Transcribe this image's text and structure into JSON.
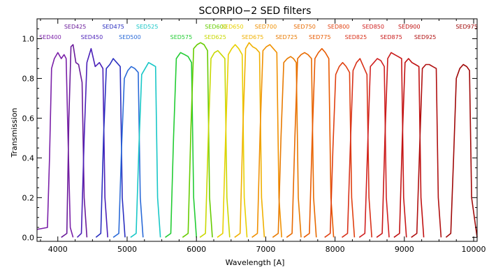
{
  "chart_data": {
    "type": "line",
    "title": "SCORPIO−2 SED filters",
    "xlabel": "Wavelength [A]",
    "ylabel": "Transmission",
    "xlim": [
      3700,
      10050
    ],
    "ylim": [
      -0.02,
      1.1
    ],
    "x_ticks": [
      4000,
      5000,
      6000,
      7000,
      8000,
      9000,
      10000
    ],
    "x_tick_labels": [
      "4000",
      "5000",
      "6000",
      "7000",
      "8000",
      "9000",
      "10000"
    ],
    "y_ticks": [
      0.0,
      0.2,
      0.4,
      0.6,
      0.8,
      1.0
    ],
    "y_tick_labels": [
      "0.0",
      "0.2",
      "0.4",
      "0.6",
      "0.8",
      "1.0"
    ],
    "grid": false,
    "series": [
      {
        "name": "SED400",
        "color": "#7a1fa8",
        "x": [
          3700,
          3850,
          3880,
          3910,
          3950,
          4000,
          4050,
          4090,
          4120,
          4140,
          4180,
          4220
        ],
        "y": [
          0.04,
          0.05,
          0.4,
          0.85,
          0.9,
          0.93,
          0.9,
          0.92,
          0.9,
          0.6,
          0.05,
          0.0
        ]
      },
      {
        "name": "SED425",
        "color": "#6a1b9a",
        "x": [
          4050,
          4130,
          4160,
          4190,
          4220,
          4260,
          4300,
          4350,
          4380,
          4420
        ],
        "y": [
          0.0,
          0.02,
          0.6,
          0.96,
          0.97,
          0.88,
          0.87,
          0.78,
          0.2,
          0.0
        ]
      },
      {
        "name": "SED450",
        "color": "#4a1fb8",
        "x": [
          4280,
          4340,
          4380,
          4420,
          4480,
          4540,
          4600,
          4650,
          4680,
          4720
        ],
        "y": [
          0.0,
          0.02,
          0.5,
          0.88,
          0.95,
          0.86,
          0.88,
          0.85,
          0.2,
          0.0
        ]
      },
      {
        "name": "SED475",
        "color": "#2a2fc0",
        "x": [
          4550,
          4620,
          4660,
          4700,
          4750,
          4800,
          4850,
          4900,
          4930,
          4970
        ],
        "y": [
          0.0,
          0.02,
          0.5,
          0.85,
          0.87,
          0.9,
          0.88,
          0.86,
          0.2,
          0.0
        ]
      },
      {
        "name": "SED500",
        "color": "#2a6ad8",
        "x": [
          4800,
          4880,
          4920,
          4960,
          5010,
          5060,
          5110,
          5160,
          5190,
          5230
        ],
        "y": [
          0.0,
          0.02,
          0.45,
          0.8,
          0.84,
          0.86,
          0.85,
          0.83,
          0.2,
          0.0
        ]
      },
      {
        "name": "SED525",
        "color": "#18c7c7",
        "x": [
          5050,
          5130,
          5170,
          5210,
          5260,
          5310,
          5360,
          5410,
          5440,
          5480
        ],
        "y": [
          0.0,
          0.02,
          0.45,
          0.82,
          0.85,
          0.88,
          0.87,
          0.86,
          0.2,
          0.0
        ]
      },
      {
        "name": "SED575",
        "color": "#22cc33",
        "x": [
          5550,
          5630,
          5670,
          5710,
          5770,
          5830,
          5880,
          5930,
          5960,
          6000
        ],
        "y": [
          0.0,
          0.02,
          0.5,
          0.9,
          0.93,
          0.92,
          0.91,
          0.88,
          0.2,
          0.0
        ]
      },
      {
        "name": "SED600",
        "color": "#66cc00",
        "x": [
          5800,
          5880,
          5920,
          5960,
          6010,
          6060,
          6110,
          6160,
          6190,
          6230
        ],
        "y": [
          0.0,
          0.02,
          0.55,
          0.95,
          0.97,
          0.98,
          0.97,
          0.94,
          0.2,
          0.0
        ]
      },
      {
        "name": "SED625",
        "color": "#c8d800",
        "x": [
          6050,
          6130,
          6170,
          6210,
          6260,
          6310,
          6360,
          6410,
          6440,
          6480
        ],
        "y": [
          0.0,
          0.02,
          0.5,
          0.9,
          0.93,
          0.94,
          0.92,
          0.9,
          0.2,
          0.0
        ]
      },
      {
        "name": "SED650",
        "color": "#e8d000",
        "x": [
          6300,
          6380,
          6420,
          6460,
          6510,
          6560,
          6610,
          6660,
          6690,
          6730
        ],
        "y": [
          0.0,
          0.02,
          0.5,
          0.92,
          0.95,
          0.97,
          0.95,
          0.92,
          0.2,
          0.0
        ]
      },
      {
        "name": "SED675",
        "color": "#f0b000",
        "x": [
          6550,
          6630,
          6670,
          6710,
          6760,
          6810,
          6860,
          6910,
          6940,
          6980
        ],
        "y": [
          0.0,
          0.02,
          0.55,
          0.95,
          0.98,
          0.96,
          0.95,
          0.93,
          0.2,
          0.0
        ]
      },
      {
        "name": "SED700",
        "color": "#f09000",
        "x": [
          6800,
          6880,
          6920,
          6960,
          7010,
          7060,
          7110,
          7160,
          7190,
          7230
        ],
        "y": [
          0.0,
          0.02,
          0.55,
          0.94,
          0.96,
          0.97,
          0.95,
          0.93,
          0.2,
          0.0
        ]
      },
      {
        "name": "SED725",
        "color": "#e87a00",
        "x": [
          7100,
          7180,
          7220,
          7260,
          7310,
          7360,
          7400,
          7440,
          7470,
          7510
        ],
        "y": [
          0.0,
          0.02,
          0.5,
          0.88,
          0.9,
          0.91,
          0.9,
          0.88,
          0.2,
          0.0
        ]
      },
      {
        "name": "SED750",
        "color": "#e86a00",
        "x": [
          7300,
          7380,
          7420,
          7460,
          7510,
          7560,
          7610,
          7660,
          7690,
          7730
        ],
        "y": [
          0.0,
          0.02,
          0.5,
          0.9,
          0.92,
          0.93,
          0.92,
          0.9,
          0.2,
          0.0
        ]
      },
      {
        "name": "SED775",
        "color": "#e85a00",
        "x": [
          7550,
          7630,
          7670,
          7710,
          7760,
          7810,
          7860,
          7910,
          7940,
          7980
        ],
        "y": [
          0.0,
          0.02,
          0.5,
          0.9,
          0.93,
          0.95,
          0.93,
          0.9,
          0.2,
          0.0
        ]
      },
      {
        "name": "SED800",
        "color": "#e04010",
        "x": [
          7850,
          7930,
          7970,
          8010,
          8060,
          8110,
          8160,
          8210,
          8240,
          8280
        ],
        "y": [
          0.0,
          0.02,
          0.45,
          0.82,
          0.86,
          0.88,
          0.86,
          0.83,
          0.2,
          0.0
        ]
      },
      {
        "name": "SED825",
        "color": "#d83018",
        "x": [
          8100,
          8180,
          8220,
          8260,
          8310,
          8360,
          8410,
          8460,
          8490,
          8530
        ],
        "y": [
          0.0,
          0.02,
          0.45,
          0.84,
          0.88,
          0.9,
          0.86,
          0.82,
          0.2,
          0.0
        ]
      },
      {
        "name": "SED850",
        "color": "#d02020",
        "x": [
          8350,
          8430,
          8470,
          8510,
          8560,
          8610,
          8660,
          8710,
          8740,
          8780
        ],
        "y": [
          0.0,
          0.02,
          0.45,
          0.86,
          0.88,
          0.9,
          0.89,
          0.86,
          0.2,
          0.0
        ]
      },
      {
        "name": "SED875",
        "color": "#c81818",
        "x": [
          8600,
          8680,
          8720,
          8760,
          8810,
          8860,
          8910,
          8960,
          8990,
          9030
        ],
        "y": [
          0.0,
          0.02,
          0.5,
          0.9,
          0.93,
          0.92,
          0.91,
          0.9,
          0.2,
          0.0
        ]
      },
      {
        "name": "SED900",
        "color": "#c01010",
        "x": [
          8850,
          8930,
          8970,
          9010,
          9060,
          9110,
          9160,
          9210,
          9240,
          9280
        ],
        "y": [
          0.0,
          0.02,
          0.5,
          0.88,
          0.9,
          0.88,
          0.87,
          0.86,
          0.2,
          0.0
        ]
      },
      {
        "name": "SED925",
        "color": "#b01010",
        "x": [
          9100,
          9180,
          9220,
          9260,
          9310,
          9360,
          9410,
          9460,
          9490,
          9530
        ],
        "y": [
          0.0,
          0.02,
          0.45,
          0.85,
          0.87,
          0.87,
          0.86,
          0.85,
          0.2,
          0.0
        ]
      },
      {
        "name": "SED975",
        "color": "#a00808",
        "x": [
          9600,
          9670,
          9710,
          9750,
          9800,
          9850,
          9900,
          9940,
          9970,
          10050
        ],
        "y": [
          0.0,
          0.02,
          0.4,
          0.8,
          0.85,
          0.87,
          0.86,
          0.84,
          0.2,
          0.0
        ]
      }
    ],
    "filter_labels": [
      {
        "text": "SED425",
        "color": "#6a1b9a",
        "x": 4250,
        "row": 0
      },
      {
        "text": "SED475",
        "color": "#2a2fc0",
        "x": 4800,
        "row": 0
      },
      {
        "text": "SED525",
        "color": "#18c7c7",
        "x": 5290,
        "row": 0
      },
      {
        "text": "SED600",
        "color": "#66cc00",
        "x": 6280,
        "row": 0
      },
      {
        "text": "SED650",
        "color": "#e8d000",
        "x": 6520,
        "row": 0
      },
      {
        "text": "SED700",
        "color": "#f09000",
        "x": 7000,
        "row": 0
      },
      {
        "text": "SED750",
        "color": "#e86a00",
        "x": 7560,
        "row": 0
      },
      {
        "text": "SED800",
        "color": "#e04010",
        "x": 8050,
        "row": 0
      },
      {
        "text": "SED850",
        "color": "#d02020",
        "x": 8550,
        "row": 0
      },
      {
        "text": "SED900",
        "color": "#c01010",
        "x": 9070,
        "row": 0
      },
      {
        "text": "SED975",
        "color": "#a00808",
        "x": 9900,
        "row": 0
      },
      {
        "text": "SED400",
        "color": "#7a1fa8",
        "x": 3890,
        "row": 1
      },
      {
        "text": "SED450",
        "color": "#4a1fb8",
        "x": 4490,
        "row": 1
      },
      {
        "text": "SED500",
        "color": "#2a6ad8",
        "x": 5040,
        "row": 1
      },
      {
        "text": "SED575",
        "color": "#22cc33",
        "x": 5780,
        "row": 1
      },
      {
        "text": "SED625",
        "color": "#c8d800",
        "x": 6270,
        "row": 1
      },
      {
        "text": "SED675",
        "color": "#f0b000",
        "x": 6810,
        "row": 1
      },
      {
        "text": "SED725",
        "color": "#e87a00",
        "x": 7300,
        "row": 1
      },
      {
        "text": "SED775",
        "color": "#e85a00",
        "x": 7780,
        "row": 1
      },
      {
        "text": "SED825",
        "color": "#d83018",
        "x": 8300,
        "row": 1
      },
      {
        "text": "SED875",
        "color": "#c81818",
        "x": 8810,
        "row": 1
      },
      {
        "text": "SED925",
        "color": "#b01010",
        "x": 9300,
        "row": 1
      }
    ]
  }
}
